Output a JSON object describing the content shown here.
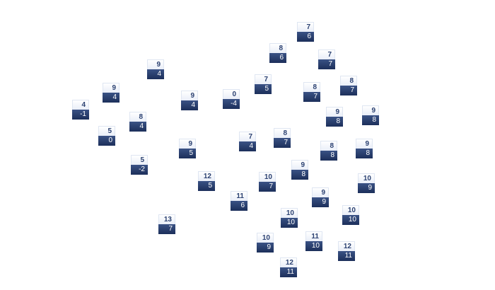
{
  "colors": {
    "header_text": "#2c4272",
    "body_bg": "#1c2f5a",
    "header_bg": "#ffffff"
  },
  "nodes": [
    {
      "top": "7",
      "bottom": "6"
    },
    {
      "top": "8",
      "bottom": "6"
    },
    {
      "top": "7",
      "bottom": "7"
    },
    {
      "top": "9",
      "bottom": "4"
    },
    {
      "top": "7",
      "bottom": "5"
    },
    {
      "top": "8",
      "bottom": "7"
    },
    {
      "top": "8",
      "bottom": "7"
    },
    {
      "top": "9",
      "bottom": "4"
    },
    {
      "top": "9",
      "bottom": "4"
    },
    {
      "top": "0",
      "bottom": "-4"
    },
    {
      "top": "4",
      "bottom": "-1"
    },
    {
      "top": "9",
      "bottom": "8"
    },
    {
      "top": "9",
      "bottom": "8"
    },
    {
      "top": "8",
      "bottom": "4"
    },
    {
      "top": "5",
      "bottom": "0"
    },
    {
      "top": "7",
      "bottom": "4"
    },
    {
      "top": "8",
      "bottom": "7"
    },
    {
      "top": "8",
      "bottom": "8"
    },
    {
      "top": "9",
      "bottom": "8"
    },
    {
      "top": "9",
      "bottom": "5"
    },
    {
      "top": "5",
      "bottom": "-2"
    },
    {
      "top": "9",
      "bottom": "8"
    },
    {
      "top": "10",
      "bottom": "7"
    },
    {
      "top": "12",
      "bottom": "5"
    },
    {
      "top": "10",
      "bottom": "9"
    },
    {
      "top": "11",
      "bottom": "6"
    },
    {
      "top": "9",
      "bottom": "9"
    },
    {
      "top": "10",
      "bottom": "10"
    },
    {
      "top": "10",
      "bottom": "10"
    },
    {
      "top": "13",
      "bottom": "7"
    },
    {
      "top": "11",
      "bottom": "10"
    },
    {
      "top": "10",
      "bottom": "9"
    },
    {
      "top": "12",
      "bottom": "11"
    },
    {
      "top": "12",
      "bottom": "11"
    }
  ]
}
